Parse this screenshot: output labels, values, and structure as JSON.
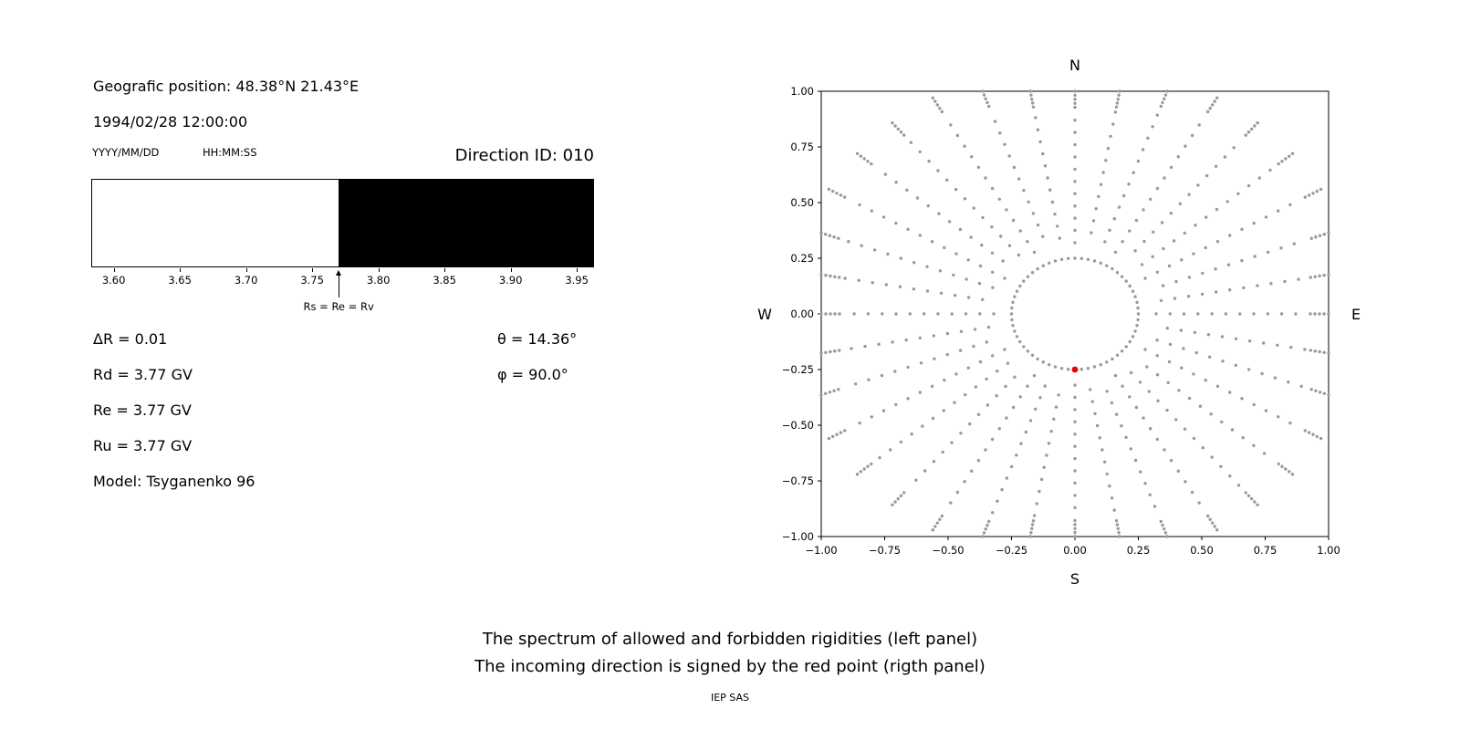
{
  "left_panel": {
    "position": "Geografic position: 48.38°N 21.43°E",
    "datetime": "1994/02/28 12:00:00",
    "date_format": "YYYY/MM/DD",
    "time_format": "HH:MM:SS",
    "direction_id": "Direction ID: 010",
    "params": [
      "ΔR = 0.01",
      "Rd = 3.77 GV",
      "Re = 3.77 GV",
      "Ru = 3.77 GV",
      "Model: Tsyganenko 96"
    ],
    "angles": [
      "θ = 14.36°",
      "φ = 90.0°"
    ]
  },
  "captions": {
    "line1": "The spectrum of allowed and forbidden rigidities (left panel)",
    "line2": "The incoming direction is signed by the red point (rigth panel)",
    "credit": "IEP SAS"
  },
  "chart_data": [
    {
      "id": "rigidity-spectrum",
      "type": "area",
      "xlim": [
        3.583,
        3.963
      ],
      "xticks": [
        3.6,
        3.65,
        3.7,
        3.75,
        3.8,
        3.85,
        3.9,
        3.95
      ],
      "regions": [
        {
          "from": 3.583,
          "to": 3.77,
          "fill": "#ffffff",
          "meaning": "allowed rigidities"
        },
        {
          "from": 3.77,
          "to": 3.963,
          "fill": "#000000",
          "meaning": "forbidden rigidities"
        }
      ],
      "marker": {
        "x": 3.77,
        "label": "Rs = Re = Rv"
      }
    },
    {
      "id": "incoming-direction",
      "type": "scatter",
      "xlim": [
        -1.0,
        1.0
      ],
      "ylim": [
        -1.0,
        1.0
      ],
      "ticks": [
        -1.0,
        -0.75,
        -0.5,
        -0.25,
        0.0,
        0.25,
        0.5,
        0.75,
        1.0
      ],
      "compass": {
        "north": "N",
        "south": "S",
        "east": "E",
        "west": "W"
      },
      "gray_series": {
        "name": "asymptotic-direction-traces",
        "color": "#999999",
        "pattern": "radial-spokes",
        "n_spokes": 36,
        "spoke_r_start": 0.32,
        "spoke_r_step": 0.055,
        "spoke_r_max": 1.12,
        "end_cluster": {
          "count": 5,
          "spacing": 0.018
        },
        "inner_ring": {
          "radius": 0.25,
          "count": 60
        }
      },
      "red_point": {
        "x": 0.0,
        "y": -0.25,
        "color": "#e8000b",
        "label": "incoming direction"
      }
    }
  ]
}
